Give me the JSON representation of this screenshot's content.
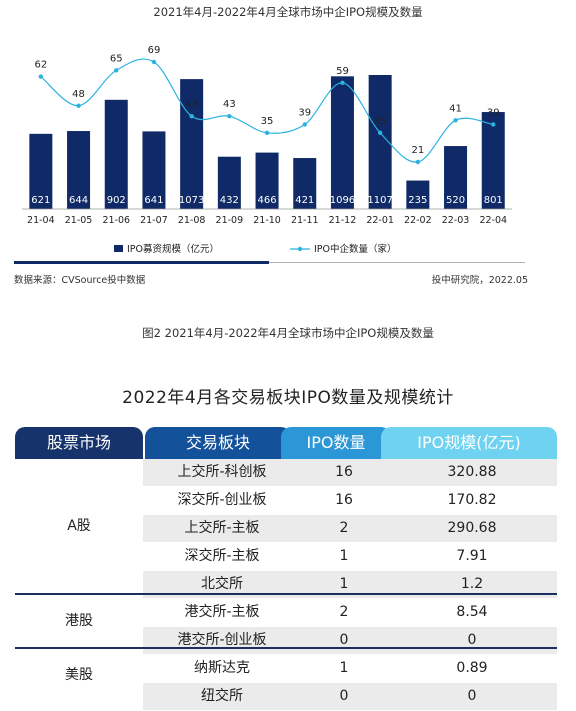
{
  "chart_title": "2021年4月-2022年4月全球市场中企IPO规模及数量",
  "chart_data": {
    "type": "bar",
    "title": "2021年4月-2022年4月全球市场中企IPO规模及数量",
    "categories": [
      "21-04",
      "21-05",
      "21-06",
      "21-07",
      "21-08",
      "21-09",
      "21-10",
      "21-11",
      "21-12",
      "22-01",
      "22-02",
      "22-03",
      "22-04"
    ],
    "series": [
      {
        "name": "IPO募资规模（亿元）",
        "type": "bar",
        "color": "#0f2a66",
        "values": [
          621,
          644,
          902,
          641,
          1073,
          432,
          466,
          421,
          1096,
          1107,
          235,
          520,
          801
        ]
      },
      {
        "name": "IPO中企数量（家）",
        "type": "line",
        "color": "#2bb3e0",
        "values": [
          62,
          48,
          65,
          69,
          43,
          43,
          35,
          39,
          59,
          35,
          21,
          41,
          39
        ]
      }
    ],
    "legend_position": "bottom"
  },
  "source_text": "数据来源：CVSource投中数据",
  "credit_text": "投中研究院，2022.05",
  "figure_caption": "图2 2021年4月-2022年4月全球市场中企IPO规模及数量",
  "table": {
    "title": "2022年4月各交易板块IPO数量及规模统计",
    "headers": [
      "股票市场",
      "交易板块",
      "IPO数量",
      "IPO规模(亿元)"
    ],
    "groups": [
      {
        "market": "A股",
        "rows": [
          {
            "board": "上交所-科创板",
            "count": "16",
            "size": "320.88"
          },
          {
            "board": "深交所-创业板",
            "count": "16",
            "size": "170.82"
          },
          {
            "board": "上交所-主板",
            "count": "2",
            "size": "290.68"
          },
          {
            "board": "深交所-主板",
            "count": "1",
            "size": "7.91"
          },
          {
            "board": "北交所",
            "count": "1",
            "size": "1.2"
          }
        ]
      },
      {
        "market": "港股",
        "rows": [
          {
            "board": "港交所-主板",
            "count": "2",
            "size": "8.54"
          },
          {
            "board": "港交所-创业板",
            "count": "0",
            "size": "0"
          }
        ]
      },
      {
        "market": "美股",
        "rows": [
          {
            "board": "纳斯达克",
            "count": "1",
            "size": "0.89"
          },
          {
            "board": "纽交所",
            "count": "0",
            "size": "0"
          }
        ]
      }
    ]
  }
}
